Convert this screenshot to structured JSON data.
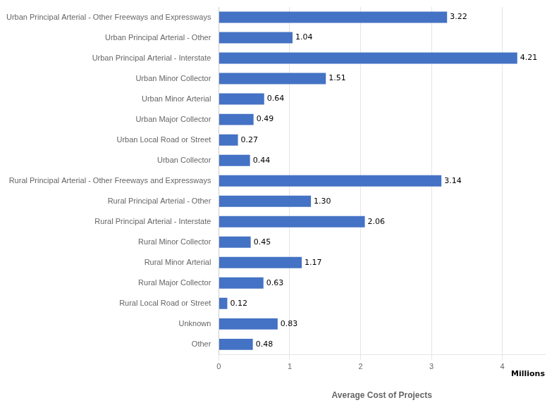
{
  "chart_data": {
    "type": "bar",
    "orientation": "horizontal",
    "xlabel": "Average Cost of Projects",
    "annotations": [
      "Millions"
    ],
    "categories": [
      "Other",
      "Unknown",
      "Rural Local Road or Street",
      "Rural Major Collector",
      "Rural Minor Arterial",
      "Rural Minor Collector",
      "Rural Principal Arterial - Interstate",
      "Rural Principal Arterial - Other",
      "Rural Principal Arterial - Other Freeways and Expressways",
      "Urban Collector",
      "Urban Local Road or Street",
      "Urban Major Collector",
      "Urban Minor Arterial",
      "Urban Minor Collector",
      "Urban Principal Arterial - Interstate",
      "Urban Principal Arterial - Other",
      "Urban Principal Arterial - Other Freeways and Expressways"
    ],
    "values": [
      0.48,
      0.83,
      0.12,
      0.63,
      1.17,
      0.45,
      2.06,
      1.3,
      3.14,
      0.44,
      0.27,
      0.49,
      0.64,
      1.51,
      4.21,
      1.04,
      3.22
    ],
    "value_labels": [
      "0.48",
      "0.83",
      "0.12",
      "0.63",
      "1.17",
      "0.45",
      "2.06",
      "1.30",
      "3.14",
      "0.44",
      "0.27",
      "0.49",
      "0.64",
      "1.51",
      "4.21",
      "1.04",
      "3.22"
    ],
    "data_labels": true,
    "color": "#4472C4",
    "xlim": [
      0,
      4.6
    ],
    "xticks": [
      0,
      1,
      2,
      3,
      4
    ],
    "grid": true
  }
}
